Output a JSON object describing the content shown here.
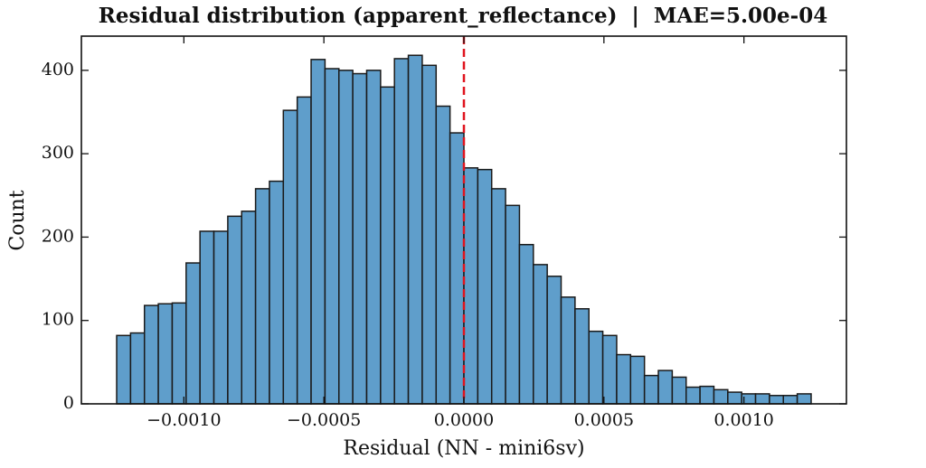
{
  "chart_data": {
    "type": "histogram",
    "title": "Residual distribution (apparent_reflectance)  |  MAE=5.00e-04",
    "xlabel": "Residual (NN - mini6sv)",
    "ylabel": "Count",
    "bins": [
      -0.00124,
      -0.0011904,
      -0.0011408,
      -0.0010912,
      -0.0010416,
      -0.000992,
      -0.0009424,
      -0.0008928,
      -0.0008432,
      -0.0007936,
      -0.000744,
      -0.0006944,
      -0.0006448,
      -0.0005952,
      -0.0005456,
      -0.000496,
      -0.0004464,
      -0.0003968,
      -0.0003472,
      -0.0002976,
      -0.000248,
      -0.0001984,
      -0.0001488,
      -9.92e-05,
      -4.96e-05,
      0,
      4.96e-05,
      9.92e-05,
      0.0001488,
      0.0001984,
      0.000248,
      0.0002976,
      0.0003472,
      0.0003968,
      0.0004464,
      0.000496,
      0.0005456,
      0.0005952,
      0.0006448,
      0.0006944,
      0.000744,
      0.0007936,
      0.0008432,
      0.0008928,
      0.0009424,
      0.000992,
      0.0010416,
      0.0010912,
      0.0011408,
      0.0011904,
      0.00124
    ],
    "values": [
      82,
      85,
      118,
      120,
      121,
      169,
      207,
      207,
      225,
      231,
      258,
      267,
      352,
      368,
      413,
      402,
      400,
      396,
      400,
      380,
      414,
      418,
      406,
      357,
      325,
      283,
      281,
      258,
      238,
      191,
      167,
      153,
      128,
      114,
      87,
      82,
      59,
      57,
      34,
      40,
      32,
      20,
      21,
      17,
      14,
      12,
      12,
      10,
      10,
      12
    ],
    "color": "#5f9ecb",
    "edgecolor": "#1a1a1a",
    "vline": {
      "value": 0,
      "color": "#e0141e"
    },
    "xlim": [
      -0.001366,
      0.001366
    ],
    "ylim": [
      0,
      441
    ],
    "xticks": [
      {
        "value": -0.001,
        "label": "−0.0010"
      },
      {
        "value": -0.0005,
        "label": "−0.0005"
      },
      {
        "value": 0,
        "label": "0.0000"
      },
      {
        "value": 0.0005,
        "label": "0.0005"
      },
      {
        "value": 0.001,
        "label": "0.0010"
      }
    ],
    "yticks": [
      0,
      100,
      200,
      300,
      400
    ]
  }
}
